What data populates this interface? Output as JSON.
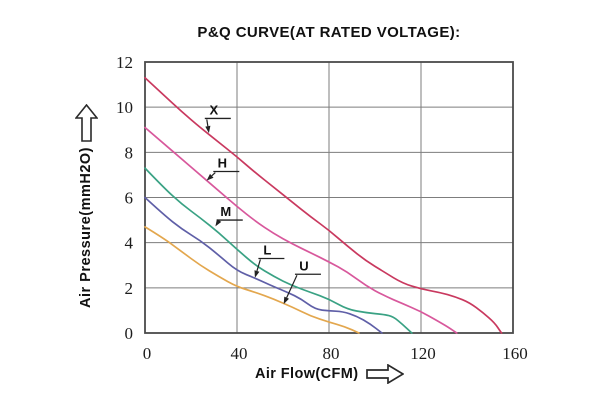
{
  "chart_data": {
    "type": "line",
    "title": "P&Q CURVE(AT RATED VOLTAGE):",
    "xlabel": "Air Flow(CFM)",
    "ylabel": "Air Pressure(mmH2O)",
    "xlim": [
      0,
      160
    ],
    "ylim": [
      0,
      12
    ],
    "xticks": [
      0,
      40,
      80,
      120,
      160
    ],
    "yticks": [
      0,
      2,
      4,
      6,
      8,
      10,
      12
    ],
    "grid": true,
    "legend_position": "inline-callouts",
    "axis_color": "#4a4a4a",
    "grid_color": "#7d7d7d",
    "tick_color": "#1c1c1c",
    "series": [
      {
        "name": "X",
        "color": "#c9395f",
        "points": [
          [
            0,
            11.3
          ],
          [
            8,
            10.55
          ],
          [
            16,
            9.8
          ],
          [
            24,
            9.1
          ],
          [
            32,
            8.45
          ],
          [
            40,
            7.8
          ],
          [
            48,
            7.1
          ],
          [
            56,
            6.45
          ],
          [
            64,
            5.8
          ],
          [
            72,
            5.15
          ],
          [
            80,
            4.55
          ],
          [
            88,
            3.85
          ],
          [
            96,
            3.2
          ],
          [
            104,
            2.7
          ],
          [
            112,
            2.2
          ],
          [
            120,
            1.95
          ],
          [
            128,
            1.8
          ],
          [
            135,
            1.6
          ],
          [
            141,
            1.35
          ],
          [
            147,
            0.9
          ],
          [
            152,
            0.45
          ],
          [
            155,
            0
          ]
        ]
      },
      {
        "name": "H",
        "color": "#d8589c",
        "points": [
          [
            0,
            9.1
          ],
          [
            8,
            8.4
          ],
          [
            16,
            7.7
          ],
          [
            24,
            7.0
          ],
          [
            32,
            6.3
          ],
          [
            40,
            5.6
          ],
          [
            48,
            4.95
          ],
          [
            56,
            4.4
          ],
          [
            64,
            3.95
          ],
          [
            72,
            3.55
          ],
          [
            80,
            3.15
          ],
          [
            88,
            2.7
          ],
          [
            96,
            2.1
          ],
          [
            104,
            1.65
          ],
          [
            112,
            1.3
          ],
          [
            120,
            0.95
          ],
          [
            127,
            0.55
          ],
          [
            132,
            0.25
          ],
          [
            135.5,
            0
          ]
        ]
      },
      {
        "name": "M",
        "color": "#3aa284",
        "points": [
          [
            0,
            7.3
          ],
          [
            8,
            6.45
          ],
          [
            16,
            5.7
          ],
          [
            24,
            5.1
          ],
          [
            32,
            4.45
          ],
          [
            40,
            3.7
          ],
          [
            48,
            3.0
          ],
          [
            56,
            2.5
          ],
          [
            64,
            2.1
          ],
          [
            72,
            1.8
          ],
          [
            80,
            1.5
          ],
          [
            88,
            1.05
          ],
          [
            96,
            0.9
          ],
          [
            104,
            0.82
          ],
          [
            108,
            0.72
          ],
          [
            112,
            0.38
          ],
          [
            116,
            0
          ]
        ]
      },
      {
        "name": "L",
        "color": "#5f5fa7",
        "points": [
          [
            0,
            6.0
          ],
          [
            8,
            5.25
          ],
          [
            16,
            4.6
          ],
          [
            24,
            4.1
          ],
          [
            32,
            3.45
          ],
          [
            40,
            2.75
          ],
          [
            48,
            2.42
          ],
          [
            56,
            2.05
          ],
          [
            62,
            1.8
          ],
          [
            68,
            1.5
          ],
          [
            74,
            1.05
          ],
          [
            80,
            0.98
          ],
          [
            86,
            0.95
          ],
          [
            92,
            0.75
          ],
          [
            98,
            0.4
          ],
          [
            103,
            0
          ]
        ]
      },
      {
        "name": "U",
        "color": "#e3a74e",
        "points": [
          [
            0,
            4.7
          ],
          [
            8,
            4.2
          ],
          [
            16,
            3.6
          ],
          [
            24,
            3.0
          ],
          [
            32,
            2.5
          ],
          [
            40,
            2.05
          ],
          [
            48,
            1.8
          ],
          [
            56,
            1.5
          ],
          [
            64,
            1.15
          ],
          [
            72,
            0.75
          ],
          [
            80,
            0.48
          ],
          [
            87,
            0.28
          ],
          [
            93,
            0
          ]
        ]
      }
    ],
    "callouts": [
      {
        "text": "X",
        "label_x": 26.0,
        "label_y": 9.5,
        "tip_x": 27.8,
        "tip_y": 8.85
      },
      {
        "text": "H",
        "label_x": 29.7,
        "label_y": 7.15,
        "tip_x": 26.8,
        "tip_y": 6.75
      },
      {
        "text": "M",
        "label_x": 31.2,
        "label_y": 5.0,
        "tip_x": 30.6,
        "tip_y": 4.72
      },
      {
        "text": "L",
        "label_x": 49.3,
        "label_y": 3.3,
        "tip_x": 47.8,
        "tip_y": 2.45
      },
      {
        "text": "U",
        "label_x": 65.2,
        "label_y": 2.6,
        "tip_x": 60.3,
        "tip_y": 1.28
      }
    ]
  }
}
